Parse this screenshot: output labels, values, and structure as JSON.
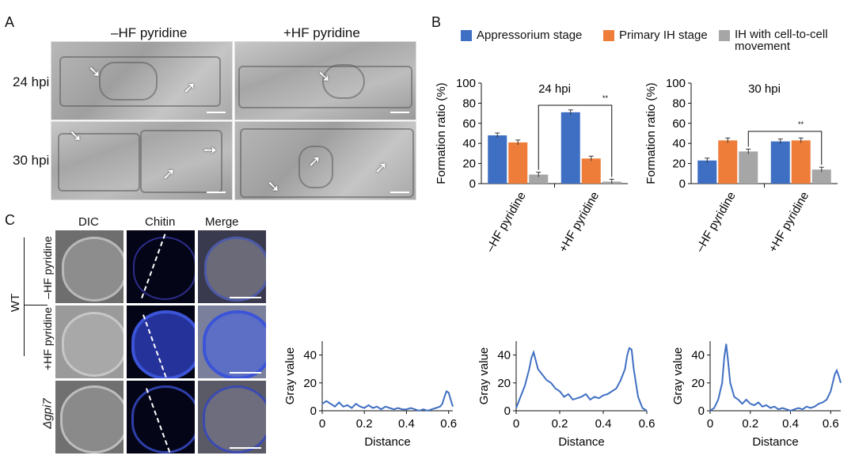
{
  "panel_a": {
    "letter": "A",
    "col_titles": [
      "–HF pyridine",
      "+HF pyridine"
    ],
    "row_labels": [
      "24 hpi",
      "30 hpi"
    ]
  },
  "panel_b": {
    "letter": "B",
    "legend": [
      "Appressorium stage",
      "Primary IH stage",
      "IH with cell-to-cell movement"
    ],
    "colors": [
      "#3f6fc2",
      "#ef7d3a",
      "#a6a6a6"
    ]
  },
  "panel_c": {
    "letter": "C",
    "col_titles": [
      "DIC",
      "Chitin",
      "Merge"
    ],
    "group_label": "WT",
    "row_labels": [
      "–HF pyridine",
      "+HF pyridine",
      "Δgpi7"
    ]
  },
  "chart_data": [
    {
      "type": "bar",
      "title": "24 hpi",
      "categories": [
        "–HF pyridine",
        "+HF pyridine"
      ],
      "series": [
        {
          "name": "Appressorium stage",
          "values": [
            48,
            71
          ]
        },
        {
          "name": "Primary IH stage",
          "values": [
            41,
            25
          ]
        },
        {
          "name": "IH with cell-to-cell movement",
          "values": [
            9,
            2
          ]
        }
      ],
      "ylabel": "Formation ratio (%)",
      "ylim": [
        0,
        100
      ],
      "yticks": [
        "0",
        "20",
        "40",
        "60",
        "80",
        "100"
      ],
      "annotation": "**"
    },
    {
      "type": "bar",
      "title": "30 hpi",
      "categories": [
        "–HF pyridine",
        "+HF pyridine"
      ],
      "series": [
        {
          "name": "Appressorium stage",
          "values": [
            23,
            42
          ]
        },
        {
          "name": "Primary IH stage",
          "values": [
            43,
            43
          ]
        },
        {
          "name": "IH with cell-to-cell movement",
          "values": [
            32,
            14
          ]
        }
      ],
      "ylabel": "Formation ratio (%)",
      "ylim": [
        0,
        100
      ],
      "yticks": [
        "0",
        "20",
        "40",
        "60",
        "80",
        "100"
      ],
      "annotation": "**"
    },
    {
      "type": "line",
      "xlabel": "Distance",
      "ylabel": "Gray value",
      "xlim": [
        0,
        0.62
      ],
      "ylim": [
        0,
        50
      ],
      "xticks": [
        "0",
        "0.2",
        "0.4",
        "0.6"
      ],
      "yticks": [
        "0",
        "20",
        "40"
      ],
      "x": [
        0,
        0.02,
        0.04,
        0.06,
        0.08,
        0.1,
        0.12,
        0.14,
        0.16,
        0.18,
        0.2,
        0.22,
        0.24,
        0.26,
        0.28,
        0.3,
        0.32,
        0.34,
        0.36,
        0.38,
        0.4,
        0.42,
        0.44,
        0.46,
        0.48,
        0.5,
        0.52,
        0.54,
        0.56,
        0.57,
        0.58,
        0.59,
        0.6,
        0.61,
        0.62
      ],
      "y": [
        5,
        7,
        5,
        3,
        6,
        3,
        4,
        2,
        5,
        3,
        2,
        4,
        2,
        3,
        1,
        3,
        2,
        1,
        2,
        1,
        1,
        2,
        1,
        0,
        1,
        0,
        1,
        2,
        3,
        5,
        10,
        14,
        13,
        8,
        3
      ]
    },
    {
      "type": "line",
      "xlabel": "Distance",
      "ylabel": "Gray value",
      "xlim": [
        0,
        0.6
      ],
      "ylim": [
        0,
        50
      ],
      "xticks": [
        "0",
        "0.2",
        "0.4",
        "0.6"
      ],
      "yticks": [
        "0",
        "20",
        "40"
      ],
      "x": [
        0,
        0.02,
        0.04,
        0.06,
        0.07,
        0.08,
        0.09,
        0.1,
        0.12,
        0.14,
        0.16,
        0.18,
        0.2,
        0.22,
        0.24,
        0.26,
        0.28,
        0.3,
        0.32,
        0.34,
        0.36,
        0.38,
        0.4,
        0.42,
        0.44,
        0.46,
        0.48,
        0.5,
        0.51,
        0.52,
        0.53,
        0.54,
        0.56,
        0.58,
        0.6
      ],
      "y": [
        2,
        10,
        18,
        30,
        38,
        42,
        36,
        30,
        26,
        22,
        20,
        16,
        14,
        10,
        12,
        8,
        9,
        10,
        12,
        8,
        10,
        9,
        11,
        12,
        14,
        16,
        22,
        30,
        40,
        45,
        44,
        30,
        10,
        2,
        0
      ]
    },
    {
      "type": "line",
      "xlabel": "Distance",
      "ylabel": "Gray value",
      "xlim": [
        0,
        0.65
      ],
      "ylim": [
        0,
        50
      ],
      "xticks": [
        "0",
        "0.2",
        "0.4",
        "0.6"
      ],
      "yticks": [
        "0",
        "20",
        "40"
      ],
      "x": [
        0,
        0.02,
        0.04,
        0.06,
        0.07,
        0.08,
        0.09,
        0.1,
        0.12,
        0.14,
        0.16,
        0.18,
        0.2,
        0.22,
        0.24,
        0.26,
        0.28,
        0.3,
        0.32,
        0.34,
        0.36,
        0.38,
        0.4,
        0.42,
        0.44,
        0.46,
        0.48,
        0.5,
        0.52,
        0.54,
        0.56,
        0.58,
        0.6,
        0.62,
        0.63,
        0.64,
        0.65
      ],
      "y": [
        0,
        2,
        8,
        20,
        38,
        48,
        35,
        20,
        10,
        8,
        5,
        8,
        5,
        4,
        6,
        3,
        4,
        2,
        3,
        1,
        2,
        1,
        0,
        1,
        2,
        1,
        3,
        2,
        3,
        5,
        6,
        8,
        14,
        26,
        29,
        25,
        20
      ]
    }
  ]
}
